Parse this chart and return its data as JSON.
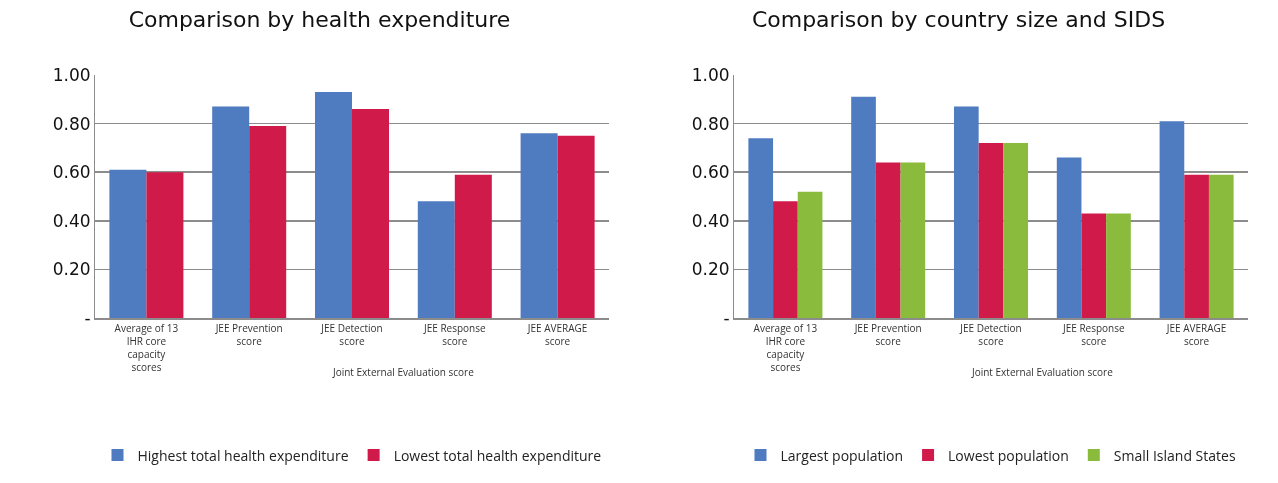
{
  "chart_data": [
    {
      "type": "bar",
      "title": "Comparison by health expenditure",
      "categories": [
        "Average of 13 IHR core capacity scores",
        "JEE Prevention score",
        "JEE Detection score",
        "JEE Response score",
        "JEE AVERAGE score"
      ],
      "series": [
        {
          "name": "Highest total health expenditure",
          "color": "#4f7bc0",
          "values": [
            0.61,
            0.87,
            0.93,
            0.48,
            0.76
          ]
        },
        {
          "name": "Lowest total health expenditure",
          "color": "#d01b4a",
          "values": [
            0.6,
            0.79,
            0.86,
            0.59,
            0.75
          ]
        }
      ],
      "ylim": [
        0,
        1
      ],
      "yticks": [
        {
          "value": 0,
          "label": "-"
        },
        {
          "value": 0.2,
          "label": "0.20"
        },
        {
          "value": 0.4,
          "label": "0.40"
        },
        {
          "value": 0.6,
          "label": "0.60"
        },
        {
          "value": 0.8,
          "label": "0.80"
        },
        {
          "value": 1,
          "label": "1.00"
        }
      ],
      "grid": "y",
      "legend": "bottom",
      "annotations": [
        "Joint External Evaluation score"
      ]
    },
    {
      "type": "bar",
      "title": "Comparison by country size and SIDS",
      "categories": [
        "Average of 13 IHR core capacity scores",
        "JEE Prevention score",
        "JEE Detection score",
        "JEE Response score",
        "JEE AVERAGE score"
      ],
      "series": [
        {
          "name": "Largest population",
          "color": "#4f7bc0",
          "values": [
            0.74,
            0.91,
            0.87,
            0.66,
            0.81
          ]
        },
        {
          "name": "Lowest population",
          "color": "#d01b4a",
          "values": [
            0.48,
            0.64,
            0.72,
            0.43,
            0.59
          ]
        },
        {
          "name": "Small Island States",
          "color": "#8abb3c",
          "values": [
            0.52,
            0.64,
            0.72,
            0.43,
            0.59
          ]
        }
      ],
      "ylim": [
        0,
        1
      ],
      "yticks": [
        {
          "value": 0,
          "label": "-"
        },
        {
          "value": 0.2,
          "label": "0.20"
        },
        {
          "value": 0.4,
          "label": "0.40"
        },
        {
          "value": 0.6,
          "label": "0.60"
        },
        {
          "value": 0.8,
          "label": "0.80"
        },
        {
          "value": 1,
          "label": "1.00"
        }
      ],
      "grid": "y",
      "legend": "bottom",
      "annotations": [
        "Joint External Evaluation score"
      ]
    }
  ]
}
